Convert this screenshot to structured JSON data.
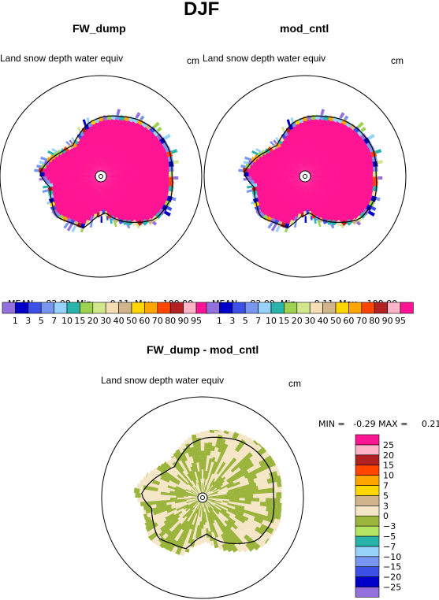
{
  "title": "DJF",
  "colors": {
    "abs_palette": [
      "#9370db",
      "#0000c8",
      "#3c50e6",
      "#7896f0",
      "#96d2fa",
      "#28b4aa",
      "#9cd250",
      "#d2e68c",
      "#f5deb3",
      "#d2b48c",
      "#ffd700",
      "#ffa500",
      "#ff4500",
      "#b22222",
      "#ffb4c8",
      "#ff1493"
    ],
    "diff_palette": [
      "#9370db",
      "#0000c8",
      "#3c50e6",
      "#7896f0",
      "#96d2fa",
      "#28b4aa",
      "#b4e664",
      "#9ab43c",
      "#f5e6c8",
      "#d2b48c",
      "#ffd700",
      "#ffa500",
      "#ff4500",
      "#b22222",
      "#ffb4c8",
      "#ff1493"
    ]
  },
  "panels": [
    {
      "name": "FW_dump",
      "variable": "Land snow depth water equiv",
      "units": "cm",
      "stats": {
        "mean_label": "MEAN=",
        "mean": "82.09",
        "min_label": "Min=",
        "min": "0.11",
        "max_label": "Max=",
        "max": "100.00"
      }
    },
    {
      "name": "mod_cntl",
      "variable": "Land snow depth water equiv",
      "units": "cm",
      "stats": {
        "mean_label": "MEAN=",
        "mean": "82.09",
        "min_label": "Min=",
        "min": "0.11",
        "max_label": "Max=",
        "max": "100.00"
      }
    }
  ],
  "abs_colorbar_labels": [
    "1",
    "3",
    "5",
    "7",
    "10",
    "15",
    "20",
    "30",
    "40",
    "50",
    "60",
    "70",
    "80",
    "90",
    "95"
  ],
  "diff_panel": {
    "name": "FW_dump - mod_cntl",
    "variable": "Land snow depth water equiv",
    "units": "cm",
    "stats": {
      "min_label": "MIN =",
      "min": "-0.29",
      "max_label": "MAX =",
      "max": "0.21"
    }
  },
  "diff_colorbar_labels": [
    "25",
    "20",
    "15",
    "10",
    "7",
    "5",
    "3",
    "0",
    "−3",
    "−5",
    "−7",
    "−10",
    "−15",
    "−20",
    "−25"
  ],
  "chart_data": [
    {
      "type": "heatmap",
      "title": "FW_dump",
      "variable": "Land snow depth water equiv",
      "units": "cm",
      "projection": "polar stereographic (north pole)",
      "levels": [
        1,
        3,
        5,
        7,
        10,
        15,
        20,
        30,
        40,
        50,
        60,
        70,
        80,
        90,
        95
      ],
      "mean": 82.09,
      "min": 0.11,
      "max": 100.0
    },
    {
      "type": "heatmap",
      "title": "mod_cntl",
      "variable": "Land snow depth water equiv",
      "units": "cm",
      "projection": "polar stereographic (north pole)",
      "levels": [
        1,
        3,
        5,
        7,
        10,
        15,
        20,
        30,
        40,
        50,
        60,
        70,
        80,
        90,
        95
      ],
      "mean": 82.09,
      "min": 0.11,
      "max": 100.0
    },
    {
      "type": "heatmap",
      "title": "FW_dump - mod_cntl",
      "variable": "Land snow depth water equiv",
      "units": "cm",
      "projection": "polar stereographic (north pole)",
      "levels": [
        -25,
        -20,
        -15,
        -10,
        -7,
        -5,
        -3,
        0,
        3,
        5,
        7,
        10,
        15,
        20,
        25
      ],
      "min": -0.29,
      "max": 0.21
    }
  ]
}
